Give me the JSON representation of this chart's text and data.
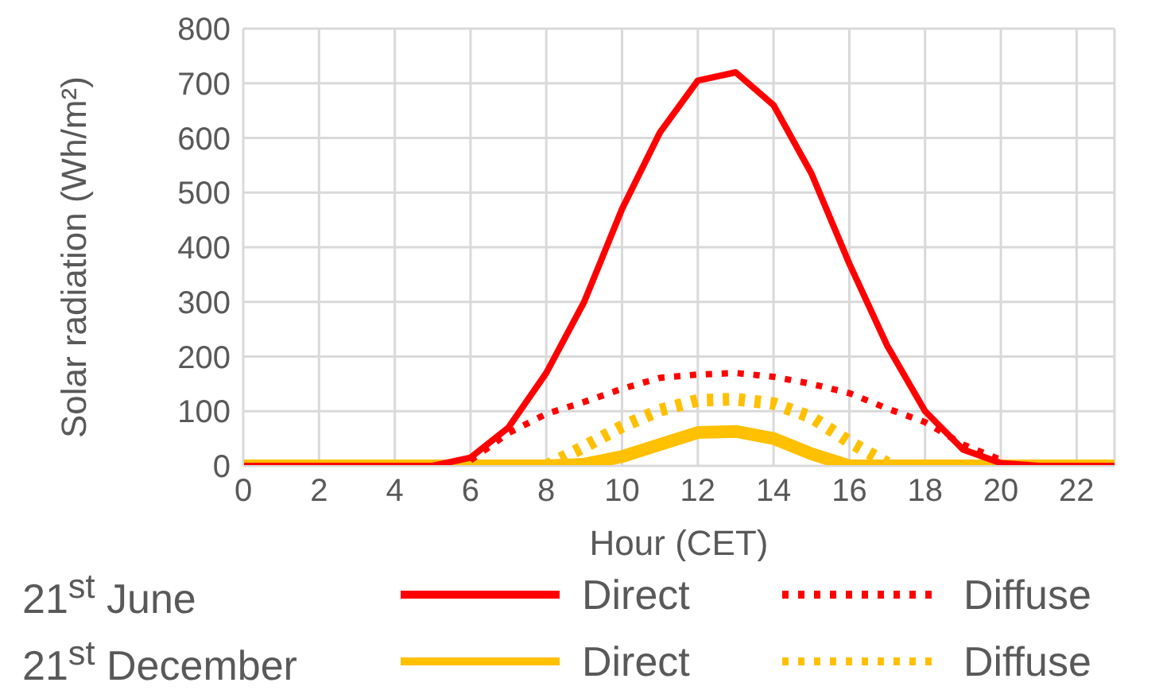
{
  "chart_data": {
    "type": "line",
    "xlabel": "Hour (CET)",
    "ylabel": "Solar radiation (Wh/m²)",
    "x": [
      0,
      1,
      2,
      3,
      4,
      5,
      6,
      7,
      8,
      9,
      10,
      11,
      12,
      13,
      14,
      15,
      16,
      17,
      18,
      19,
      20,
      21,
      22,
      23
    ],
    "series": [
      {
        "name": "Direct",
        "color": "#ff0000",
        "line_style": "solid",
        "values": [
          0,
          0,
          0,
          0,
          0,
          0,
          15,
          70,
          170,
          300,
          470,
          610,
          705,
          720,
          660,
          535,
          370,
          220,
          100,
          30,
          5,
          0,
          0,
          0
        ]
      },
      {
        "name": "Diffuse",
        "color": "#ff0000",
        "line_style": "dotted",
        "values": [
          null,
          null,
          null,
          null,
          null,
          null,
          10,
          60,
          95,
          117,
          141,
          161,
          167,
          170,
          163,
          150,
          133,
          105,
          80,
          39,
          11,
          null,
          null,
          null
        ]
      },
      {
        "name": "Direct",
        "color": "#ffc000",
        "line_style": "solid",
        "values": [
          0,
          0,
          0,
          0,
          0,
          0,
          0,
          0,
          0,
          3,
          17,
          39,
          61,
          63,
          50,
          22,
          0,
          0,
          0,
          0,
          0,
          0,
          0,
          0
        ]
      },
      {
        "name": "Diffuse",
        "color": "#ffc000",
        "line_style": "dotted",
        "values": [
          null,
          null,
          null,
          null,
          null,
          null,
          null,
          null,
          0,
          35,
          72,
          102,
          120,
          122,
          114,
          89,
          44,
          5,
          null,
          null,
          null,
          null,
          null,
          null
        ]
      }
    ],
    "annotations": [
      "21$^{st}$ June",
      "21$^{st}$ December"
    ],
    "xlim": [
      0,
      23
    ],
    "xticks": [
      0,
      2,
      4,
      6,
      8,
      10,
      12,
      14,
      16,
      18,
      20,
      22
    ],
    "ylim": [
      0,
      800
    ],
    "yticks": [
      0,
      100,
      200,
      300,
      400,
      500,
      600,
      700,
      800
    ],
    "grid": true,
    "legend": "bottom",
    "marker": "none"
  }
}
